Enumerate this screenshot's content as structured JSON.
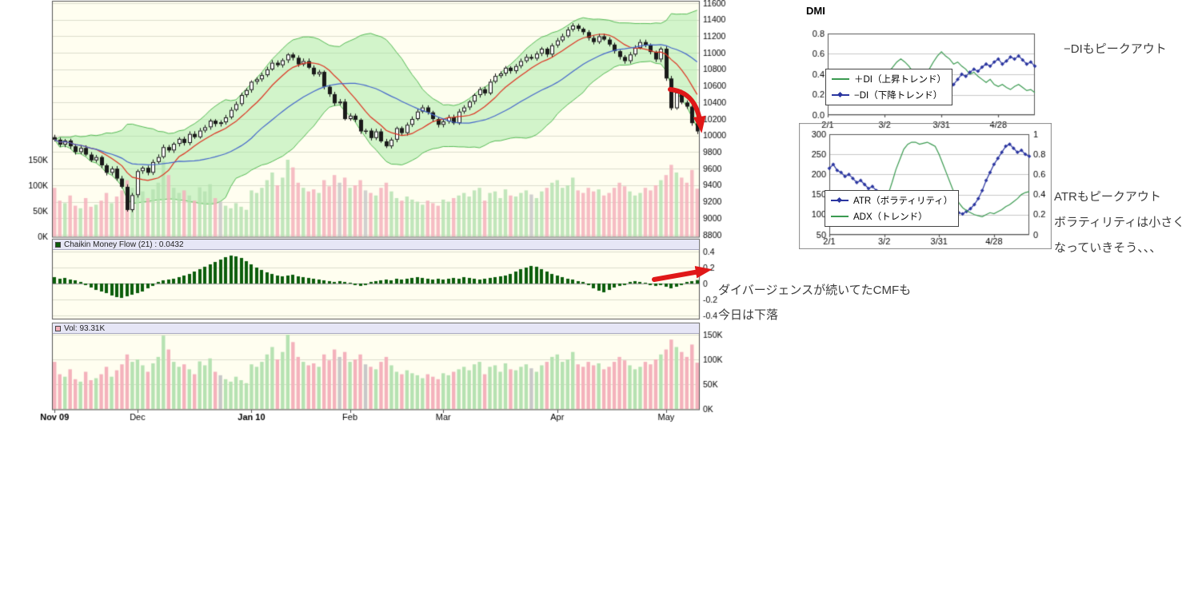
{
  "panels": {
    "cmf_label": "Chaikin Money Flow (21) : 0.0432",
    "vol_label": "Vol: 93.31K"
  },
  "annotations": {
    "dmi_note": "−DIもピークアウト",
    "atr_note_1": "ATRもピークアウト",
    "atr_note_2": "ボラティリティは小さく",
    "atr_note_3": "なっていきそう、、、",
    "cmf_note_1": "ダイバージェンスが続いてたCMFも",
    "cmf_note_2": "今日は下落"
  },
  "chart_data": [
    {
      "id": "price",
      "type": "candlestick",
      "y_axis": {
        "min": 8800,
        "max": 11600,
        "step": 200,
        "side": "right"
      },
      "x_axis": {
        "months": [
          {
            "label": "Nov 09",
            "index": 0,
            "bold": true
          },
          {
            "label": "Dec",
            "index": 16,
            "bold": false
          },
          {
            "label": "Jan 10",
            "index": 38,
            "bold": true
          },
          {
            "label": "Feb",
            "index": 57,
            "bold": false
          },
          {
            "label": "Mar",
            "index": 75,
            "bold": false
          },
          {
            "label": "Apr",
            "index": 97,
            "bold": false
          },
          {
            "label": "May",
            "index": 118,
            "bold": false
          }
        ]
      },
      "first_open": 9980,
      "closes": [
        9950,
        9890,
        9940,
        9870,
        9800,
        9850,
        9770,
        9700,
        9740,
        9640,
        9550,
        9600,
        9480,
        9380,
        9100,
        9280,
        9570,
        9610,
        9550,
        9680,
        9740,
        9860,
        9820,
        9900,
        9960,
        9910,
        10020,
        9980,
        10060,
        10100,
        10180,
        10140,
        10160,
        10220,
        10310,
        10380,
        10490,
        10550,
        10650,
        10680,
        10730,
        10800,
        10880,
        10850,
        10910,
        10980,
        10940,
        10860,
        10900,
        10820,
        10740,
        10770,
        10590,
        10500,
        10390,
        10410,
        10200,
        10240,
        10190,
        10050,
        10060,
        9970,
        10050,
        9930,
        9870,
        9950,
        10090,
        10030,
        10130,
        10200,
        10290,
        10340,
        10280,
        10200,
        10130,
        10170,
        10220,
        10150,
        10290,
        10340,
        10410,
        10490,
        10560,
        10510,
        10650,
        10720,
        10750,
        10820,
        10780,
        10840,
        10900,
        10950,
        10930,
        10990,
        11050,
        10980,
        11090,
        11150,
        11200,
        11280,
        11330,
        11290,
        11250,
        11180,
        11130,
        11200,
        11160,
        11100,
        11020,
        10950,
        10900,
        10980,
        11060,
        11130,
        11090,
        11010,
        10920,
        11050,
        10690,
        10330,
        10520,
        10400,
        10350,
        10150,
        10050
      ],
      "overlays": {
        "bollinger_period": 20,
        "bollinger_mult": 2,
        "ma_short_period": 9,
        "ma_long_period": 25
      },
      "colors": {
        "bg": "#fffef0",
        "up": "#ffffff",
        "down": "#1a1a1a",
        "ma_short": "#dd3322",
        "ma_long": "#4466cc",
        "band_fill": "#9ce89c",
        "band_edge": "#55bb55",
        "grid": "#ddddcc",
        "border": "#555555"
      }
    },
    {
      "id": "volume",
      "type": "bar",
      "y_axis": {
        "ticks_k": [
          150,
          100,
          50,
          0
        ]
      },
      "values_k": [
        95,
        70,
        65,
        80,
        60,
        55,
        75,
        58,
        62,
        70,
        85,
        65,
        78,
        90,
        110,
        95,
        100,
        88,
        75,
        92,
        105,
        148,
        120,
        95,
        85,
        90,
        80,
        70,
        96,
        88,
        102,
        75,
        68,
        60,
        55,
        65,
        58,
        52,
        90,
        85,
        95,
        110,
        125,
        100,
        115,
        150,
        135,
        105,
        95,
        88,
        92,
        85,
        110,
        98,
        120,
        105,
        115,
        95,
        100,
        110,
        90,
        85,
        80,
        95,
        105,
        88,
        75,
        70,
        78,
        72,
        68,
        62,
        70,
        65,
        60,
        72,
        68,
        75,
        80,
        85,
        78,
        90,
        95,
        70,
        85,
        88,
        75,
        92,
        80,
        78,
        85,
        90,
        82,
        75,
        88,
        95,
        105,
        110,
        95,
        100,
        115,
        90,
        85,
        95,
        88,
        92,
        80,
        85,
        95,
        105,
        98,
        88,
        80,
        85,
        95,
        90,
        100,
        110,
        120,
        140,
        125,
        115,
        105,
        130,
        93.31
      ],
      "colors": {
        "up": "#b6e2b2",
        "down": "#f4b2bc",
        "neutral": "#c8c8c8"
      }
    },
    {
      "id": "cmf",
      "type": "bar",
      "current_value": 0.0432,
      "y_axis": {
        "ticks": [
          0.4,
          0.2,
          0,
          -0.2,
          -0.4
        ]
      },
      "color": "#0b5d0b",
      "values": [
        0.08,
        0.06,
        0.07,
        0.05,
        0.04,
        0.02,
        -0.02,
        -0.05,
        -0.08,
        -0.1,
        -0.12,
        -0.15,
        -0.17,
        -0.18,
        -0.16,
        -0.14,
        -0.12,
        -0.1,
        -0.06,
        -0.03,
        0.02,
        0.04,
        0.05,
        0.06,
        0.08,
        0.1,
        0.12,
        0.15,
        0.18,
        0.21,
        0.24,
        0.27,
        0.3,
        0.33,
        0.35,
        0.34,
        0.32,
        0.28,
        0.24,
        0.2,
        0.17,
        0.14,
        0.12,
        0.1,
        0.09,
        0.1,
        0.11,
        0.09,
        0.08,
        0.07,
        0.06,
        0.05,
        0.04,
        0.03,
        0.02,
        0.03,
        0.02,
        0.01,
        -0.02,
        -0.03,
        -0.02,
        0.02,
        0.03,
        0.04,
        0.05,
        0.04,
        0.06,
        0.05,
        0.06,
        0.07,
        0.08,
        0.07,
        0.06,
        0.05,
        0.06,
        0.05,
        0.06,
        0.07,
        0.06,
        0.08,
        0.07,
        0.06,
        0.05,
        0.06,
        0.07,
        0.08,
        0.09,
        0.1,
        0.12,
        0.15,
        0.18,
        0.2,
        0.22,
        0.21,
        0.18,
        0.15,
        0.12,
        0.1,
        0.08,
        0.06,
        0.05,
        0.03,
        0.02,
        -0.02,
        -0.06,
        -0.09,
        -0.11,
        -0.08,
        -0.05,
        -0.03,
        -0.02,
        0.02,
        0.03,
        0.02,
        0.01,
        -0.02,
        -0.03,
        -0.02,
        -0.04,
        -0.06,
        -0.04,
        -0.02,
        0.02,
        0.03,
        0.0432
      ]
    },
    {
      "id": "dmi",
      "type": "line",
      "title": "DMI",
      "y_axis": {
        "min": 0,
        "max": 0.8,
        "step": 0.2
      },
      "x_ticks": [
        {
          "label": "2/1",
          "index": 0
        },
        {
          "label": "3/2",
          "index": 14
        },
        {
          "label": "3/31",
          "index": 28
        },
        {
          "label": "4/28",
          "index": 42
        }
      ],
      "series": [
        {
          "name": "＋DI（上昇トレンド）",
          "color": "#3a9a50",
          "marker": "none",
          "values": [
            0.42,
            0.4,
            0.38,
            0.35,
            0.33,
            0.36,
            0.34,
            0.3,
            0.28,
            0.31,
            0.29,
            0.27,
            0.3,
            0.33,
            0.38,
            0.42,
            0.47,
            0.52,
            0.55,
            0.52,
            0.48,
            0.42,
            0.38,
            0.35,
            0.38,
            0.45,
            0.52,
            0.58,
            0.62,
            0.58,
            0.55,
            0.5,
            0.52,
            0.48,
            0.45,
            0.4,
            0.42,
            0.38,
            0.35,
            0.32,
            0.35,
            0.3,
            0.28,
            0.3,
            0.27,
            0.25,
            0.28,
            0.3,
            0.27,
            0.24,
            0.25,
            0.22
          ]
        },
        {
          "name": "−DI（下降トレンド）",
          "color": "#2a35a0",
          "marker": "diamond",
          "values": [
            0.3,
            0.32,
            0.35,
            0.33,
            0.3,
            0.28,
            0.3,
            0.33,
            0.35,
            0.32,
            0.34,
            0.36,
            0.33,
            0.3,
            0.28,
            0.25,
            0.22,
            0.2,
            0.18,
            0.2,
            0.23,
            0.27,
            0.3,
            0.33,
            0.3,
            0.27,
            0.24,
            0.2,
            0.18,
            0.22,
            0.25,
            0.3,
            0.35,
            0.4,
            0.38,
            0.42,
            0.45,
            0.43,
            0.47,
            0.5,
            0.48,
            0.52,
            0.55,
            0.5,
            0.53,
            0.57,
            0.55,
            0.58,
            0.54,
            0.5,
            0.52,
            0.48
          ]
        }
      ]
    },
    {
      "id": "atr_adx",
      "type": "line",
      "y_left": {
        "min": 50,
        "max": 300,
        "step": 50
      },
      "y_right": {
        "min": 0,
        "max": 1,
        "step": 0.2
      },
      "x_ticks": [
        {
          "label": "2/1",
          "index": 0
        },
        {
          "label": "3/2",
          "index": 14
        },
        {
          "label": "3/31",
          "index": 28
        },
        {
          "label": "4/28",
          "index": 42
        }
      ],
      "series": [
        {
          "name": "ATR（ボラティリティ）",
          "color": "#2a35a0",
          "marker": "diamond",
          "axis": "left",
          "values": [
            215,
            225,
            210,
            205,
            195,
            200,
            190,
            180,
            185,
            175,
            165,
            170,
            160,
            150,
            155,
            145,
            140,
            135,
            130,
            128,
            125,
            120,
            118,
            115,
            112,
            115,
            110,
            108,
            105,
            102,
            100,
            98,
            100,
            105,
            102,
            108,
            115,
            125,
            140,
            160,
            185,
            205,
            225,
            240,
            255,
            270,
            275,
            265,
            255,
            260,
            250,
            245
          ]
        },
        {
          "name": "ADX（トレンド）",
          "color": "#3a9a50",
          "marker": "none",
          "axis": "right",
          "values": [
            0.3,
            0.28,
            0.25,
            0.22,
            0.2,
            0.18,
            0.2,
            0.22,
            0.2,
            0.18,
            0.17,
            0.16,
            0.18,
            0.22,
            0.3,
            0.4,
            0.52,
            0.65,
            0.75,
            0.85,
            0.9,
            0.92,
            0.92,
            0.9,
            0.91,
            0.92,
            0.9,
            0.88,
            0.8,
            0.7,
            0.6,
            0.5,
            0.4,
            0.32,
            0.27,
            0.24,
            0.22,
            0.2,
            0.19,
            0.18,
            0.2,
            0.22,
            0.21,
            0.23,
            0.25,
            0.28,
            0.3,
            0.33,
            0.36,
            0.4,
            0.42,
            0.43
          ]
        }
      ]
    }
  ]
}
